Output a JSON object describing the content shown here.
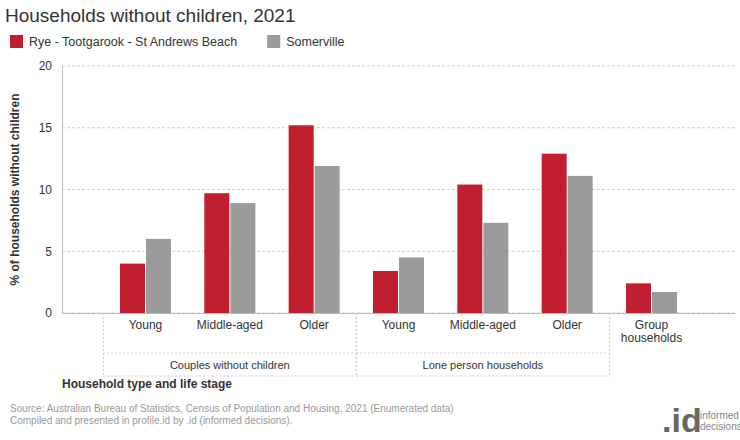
{
  "chart_data": {
    "type": "bar",
    "title": "Households without children, 2021",
    "y_label": "% of households without children",
    "x_label": "Household type and life stage",
    "categories": [
      "Young",
      "Middle-aged",
      "Older",
      "Young",
      "Middle-aged",
      "Older",
      "Group households"
    ],
    "group_labels": [
      "Couples without children",
      "Couples without children",
      "Couples without children",
      "Lone person households",
      "Lone person households",
      "Lone person households",
      null
    ],
    "series": [
      {
        "name": "Rye - Tootgarook - St Andrews Beach",
        "color": "#c01f2f",
        "values": [
          4.0,
          9.7,
          15.2,
          3.4,
          10.4,
          12.9,
          2.4
        ]
      },
      {
        "name": "Somerville",
        "color": "#9b9b9b",
        "values": [
          6.0,
          8.9,
          11.9,
          4.5,
          7.3,
          11.1,
          1.7
        ]
      }
    ],
    "ylim": [
      0,
      20
    ],
    "yticks": [
      0,
      5,
      10,
      15,
      20
    ],
    "grid": true,
    "legend": "top-left",
    "source": [
      "Source: Australian Bureau of Statistics, Census of Population and Housing, 2021 (Enumerated data)",
      "Compiled and presented in profile.id by .id (informed decisions)."
    ],
    "logo": ".id",
    "logo_text": "informed decisions"
  }
}
